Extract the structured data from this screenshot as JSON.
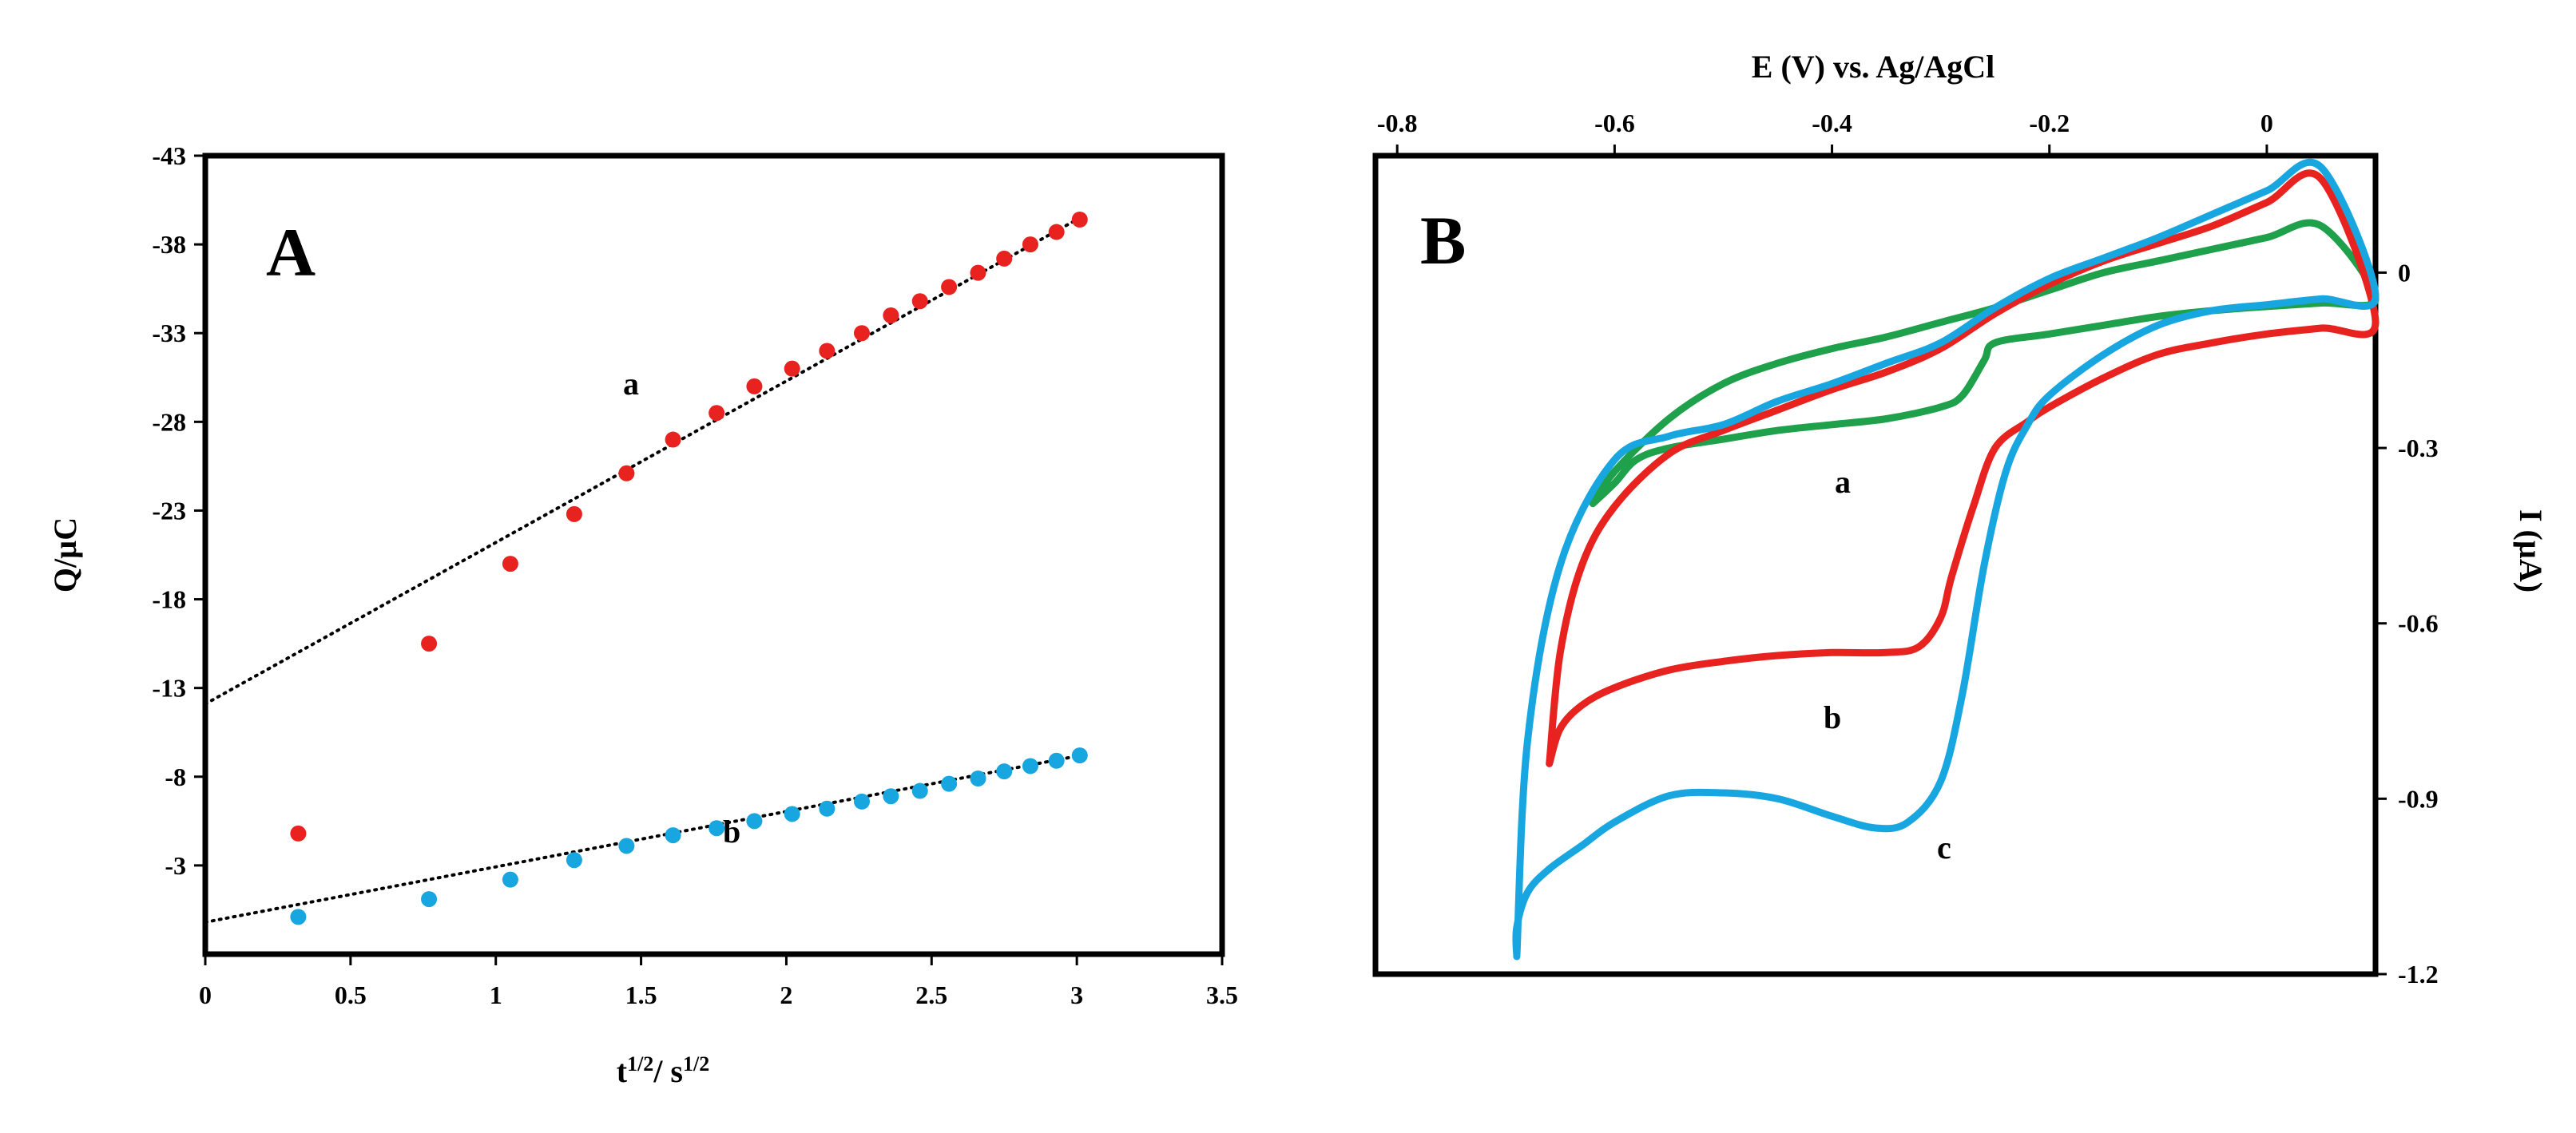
{
  "chart_data": [
    {
      "panel_label": "A",
      "type": "scatter",
      "xlabel_main": "t",
      "xlabel_exp1": "1/2",
      "xlabel_sep": "/ s",
      "xlabel_exp2": "1/2",
      "ylabel": "Q/µC",
      "xlim": [
        0,
        3.5
      ],
      "ylim": [
        -43,
        2
      ],
      "y_axis_inverted": true,
      "xticks": [
        0,
        0.5,
        1,
        1.5,
        2,
        2.5,
        3,
        3.5
      ],
      "xtick_labels": [
        "0",
        "0.5",
        "1",
        "1.5",
        "2",
        "2.5",
        "3",
        "3.5"
      ],
      "yticks": [
        -43,
        -38,
        -33,
        -28,
        -23,
        -18,
        -13,
        -8,
        -3
      ],
      "ytick_labels": [
        "-43",
        "-38",
        "-33",
        "-28",
        "-23",
        "-18",
        "-13",
        "-8",
        "-3"
      ],
      "series": [
        {
          "name": "a",
          "label": "a",
          "color": "#e8221e",
          "fit_color": "#000000",
          "x": [
            0.32,
            0.77,
            1.05,
            1.27,
            1.45,
            1.61,
            1.76,
            1.89,
            2.02,
            2.14,
            2.26,
            2.36,
            2.46,
            2.56,
            2.66,
            2.75,
            2.84,
            2.93,
            3.01
          ],
          "values": [
            -4.8,
            -15.5,
            -20.0,
            -22.8,
            -25.1,
            -27.0,
            -28.5,
            -30.0,
            -31.0,
            -32.0,
            -33.0,
            -34.0,
            -34.8,
            -35.6,
            -36.4,
            -37.2,
            -38.0,
            -38.7,
            -39.4
          ],
          "fit": {
            "slope": -9.1,
            "intercept": -12.1,
            "x_range": [
              0,
              3.02
            ]
          }
        },
        {
          "name": "b",
          "label": "b",
          "color": "#18a6e0",
          "fit_color": "#000000",
          "x": [
            0.32,
            0.77,
            1.05,
            1.27,
            1.45,
            1.61,
            1.76,
            1.89,
            2.02,
            2.14,
            2.26,
            2.36,
            2.46,
            2.56,
            2.66,
            2.75,
            2.84,
            2.93,
            3.01
          ],
          "values": [
            -0.1,
            -1.1,
            -2.2,
            -3.3,
            -4.1,
            -4.7,
            -5.1,
            -5.5,
            -5.9,
            -6.2,
            -6.6,
            -6.9,
            -7.2,
            -7.6,
            -7.9,
            -8.3,
            -8.6,
            -8.9,
            -9.2
          ],
          "fit": {
            "slope": -3.12,
            "intercept": 0.2,
            "x_range": [
              0,
              3.02
            ]
          }
        }
      ]
    },
    {
      "panel_label": "B",
      "type": "line",
      "xlabel": "E (V) vs. Ag/AgCl",
      "xlabel_position": "top",
      "ylabel": "I (µA)",
      "ylabel_position": "right",
      "xlim": [
        -0.82,
        0.1
      ],
      "ylim": [
        -1.2,
        0.2
      ],
      "xticks": [
        -0.8,
        -0.6,
        -0.4,
        -0.2,
        0
      ],
      "xtick_labels": [
        "-0.8",
        "-0.6",
        "-0.4",
        "-0.2",
        "0"
      ],
      "yticks": [
        0,
        -0.3,
        -0.6,
        -0.9,
        -1.2
      ],
      "ytick_labels": [
        "0",
        "-0.3",
        "-0.6",
        "-0.9",
        "-1.2"
      ],
      "series": [
        {
          "name": "a",
          "label": "a",
          "color": "#1fa04a",
          "x": [
            -0.62,
            -0.6,
            -0.58,
            -0.55,
            -0.5,
            -0.45,
            -0.4,
            -0.35,
            -0.3,
            -0.28,
            -0.26,
            -0.25,
            -0.2,
            -0.15,
            -0.1,
            -0.05,
            0,
            0.05,
            0.1,
            0.05,
            0,
            -0.05,
            -0.1,
            -0.15,
            -0.2,
            -0.25,
            -0.3,
            -0.35,
            -0.4,
            -0.45,
            -0.5,
            -0.55,
            -0.6,
            -0.62
          ],
          "values": [
            -0.395,
            -0.36,
            -0.32,
            -0.3,
            -0.285,
            -0.27,
            -0.26,
            -0.25,
            -0.23,
            -0.21,
            -0.15,
            -0.12,
            -0.105,
            -0.09,
            -0.075,
            -0.065,
            -0.058,
            -0.052,
            -0.045,
            0.08,
            0.06,
            0.04,
            0.02,
            0.0,
            -0.03,
            -0.06,
            -0.085,
            -0.11,
            -0.13,
            -0.155,
            -0.19,
            -0.25,
            -0.34,
            -0.395
          ]
        },
        {
          "name": "b",
          "label": "b",
          "color": "#e8221e",
          "x": [
            -0.66,
            -0.65,
            -0.63,
            -0.6,
            -0.55,
            -0.5,
            -0.45,
            -0.4,
            -0.35,
            -0.32,
            -0.3,
            -0.29,
            -0.27,
            -0.25,
            -0.22,
            -0.2,
            -0.15,
            -0.1,
            -0.05,
            0,
            0.05,
            0.1,
            0.05,
            0,
            -0.05,
            -0.1,
            -0.15,
            -0.2,
            -0.25,
            -0.3,
            -0.35,
            -0.4,
            -0.45,
            -0.5,
            -0.55,
            -0.6,
            -0.63,
            -0.65,
            -0.66
          ],
          "values": [
            -0.84,
            -0.78,
            -0.74,
            -0.71,
            -0.68,
            -0.665,
            -0.655,
            -0.65,
            -0.65,
            -0.64,
            -0.59,
            -0.52,
            -0.4,
            -0.3,
            -0.255,
            -0.23,
            -0.18,
            -0.14,
            -0.12,
            -0.105,
            -0.095,
            -0.085,
            0.16,
            0.12,
            0.08,
            0.05,
            0.02,
            -0.02,
            -0.07,
            -0.13,
            -0.17,
            -0.2,
            -0.235,
            -0.27,
            -0.31,
            -0.4,
            -0.5,
            -0.65,
            -0.84
          ]
        },
        {
          "name": "c",
          "label": "c",
          "color": "#18a6e0",
          "x": [
            -0.69,
            -0.69,
            -0.68,
            -0.66,
            -0.63,
            -0.6,
            -0.55,
            -0.5,
            -0.45,
            -0.4,
            -0.36,
            -0.33,
            -0.3,
            -0.28,
            -0.26,
            -0.24,
            -0.22,
            -0.2,
            -0.15,
            -0.1,
            -0.05,
            0,
            0.05,
            0.1,
            0.05,
            0,
            -0.05,
            -0.1,
            -0.15,
            -0.2,
            -0.25,
            -0.3,
            -0.35,
            -0.4,
            -0.45,
            -0.5,
            -0.55,
            -0.6,
            -0.65,
            -0.68,
            -0.69
          ],
          "values": [
            -1.17,
            -1.12,
            -1.06,
            -1.02,
            -0.98,
            -0.94,
            -0.895,
            -0.89,
            -0.9,
            -0.93,
            -0.95,
            -0.94,
            -0.87,
            -0.72,
            -0.5,
            -0.34,
            -0.26,
            -0.21,
            -0.14,
            -0.09,
            -0.065,
            -0.055,
            -0.045,
            -0.04,
            0.18,
            0.14,
            0.1,
            0.06,
            0.025,
            -0.01,
            -0.06,
            -0.12,
            -0.155,
            -0.19,
            -0.22,
            -0.26,
            -0.28,
            -0.32,
            -0.5,
            -0.8,
            -1.17
          ]
        }
      ]
    }
  ]
}
